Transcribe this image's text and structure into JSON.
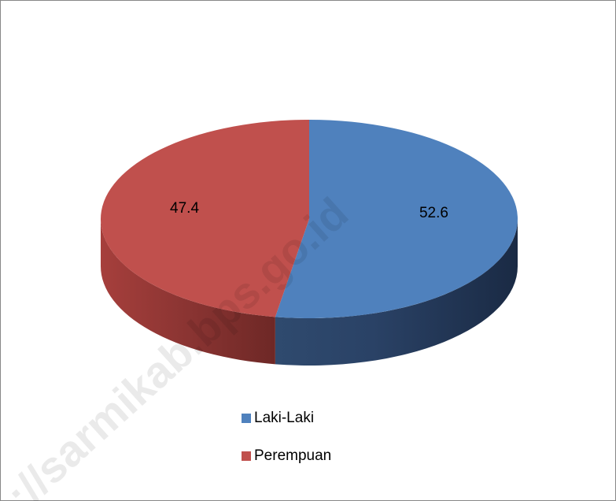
{
  "chart_data": {
    "type": "pie",
    "categories": [
      "Laki-Laki",
      "Perempuan"
    ],
    "values": [
      52.6,
      47.4
    ],
    "colors": [
      "#4f81bd",
      "#c0504d"
    ],
    "legend": "bottom",
    "watermark": "://sarmikab.bps.go.id"
  }
}
